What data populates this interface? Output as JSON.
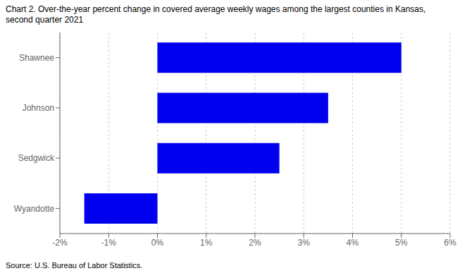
{
  "chart_data": {
    "type": "bar",
    "title": "Chart 2. Over-the-year percent change in covered average weekly wages among the largest counties in Kansas,\nsecond quarter 2021",
    "annotations": [
      "Source: U.S. Bureau of Labor Statistics."
    ],
    "categories": [
      "Wyandotte",
      "Sedgwick",
      "Johnson",
      "Shawnee"
    ],
    "values": [
      -1.5,
      2.5,
      3.5,
      5.0
    ],
    "color": "#0000ee",
    "orientation": "horizontal",
    "xlim": [
      -2,
      6
    ],
    "xticks": [
      {
        "value": -2,
        "label": "-2%"
      },
      {
        "value": -1,
        "label": "-1%"
      },
      {
        "value": 0,
        "label": "0%"
      },
      {
        "value": 1,
        "label": "1%"
      },
      {
        "value": 2,
        "label": "2%"
      },
      {
        "value": 3,
        "label": "3%"
      },
      {
        "value": 4,
        "label": "4%"
      },
      {
        "value": 5,
        "label": "5%"
      },
      {
        "value": 6,
        "label": "6%"
      }
    ],
    "grid": true
  }
}
